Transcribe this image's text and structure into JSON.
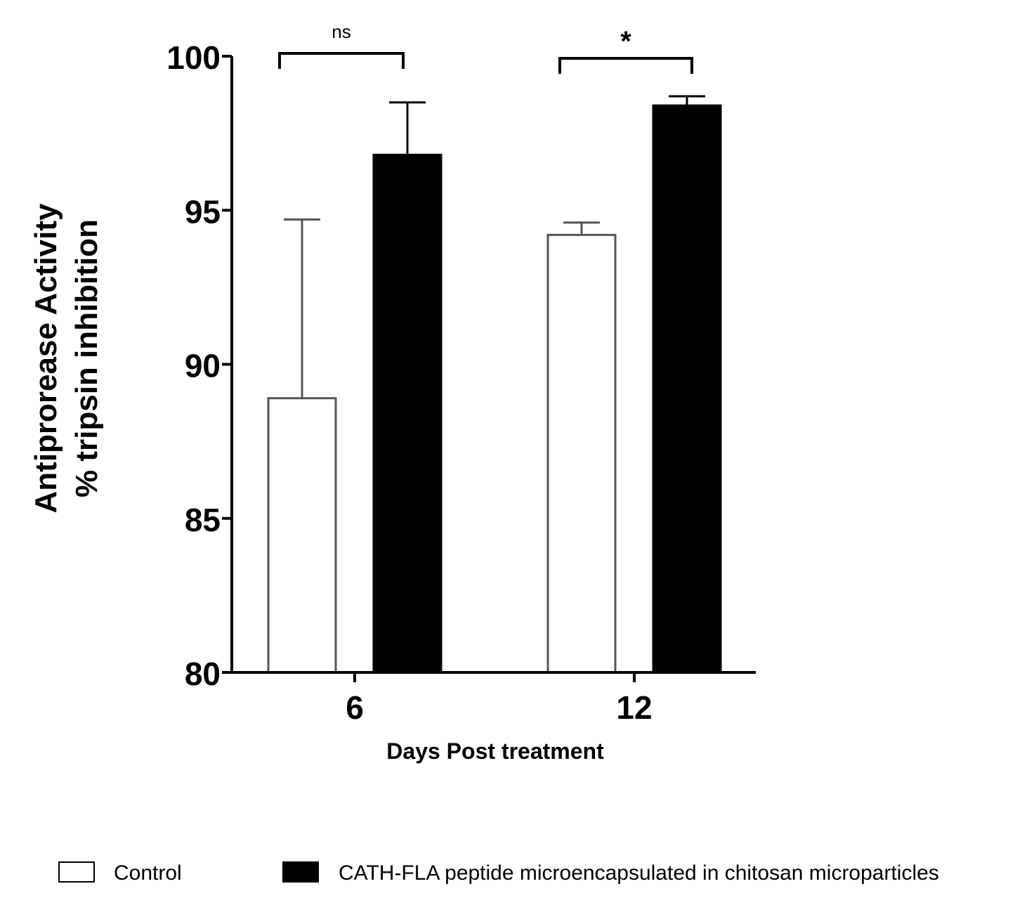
{
  "chart_data": {
    "type": "bar",
    "title": "",
    "xlabel": "Days Post treatment",
    "ylabel_lines": [
      "Antiprorease Activity",
      "% tripsin inhibition"
    ],
    "ylim": [
      80,
      100
    ],
    "yticks": [
      80,
      85,
      90,
      95,
      100
    ],
    "categories": [
      "6",
      "12"
    ],
    "series": [
      {
        "name": "Control",
        "fill": "#ffffff",
        "stroke": "#555555",
        "values": [
          88.9,
          94.2
        ],
        "error_upper": [
          94.7,
          94.6
        ]
      },
      {
        "name": "CATH-FLA peptide microencapsulated in chitosan microparticles",
        "fill": "#000000",
        "stroke": "#000000",
        "values": [
          96.8,
          98.4
        ],
        "error_upper": [
          98.5,
          98.7
        ]
      }
    ],
    "annotations": [
      {
        "category_index": 0,
        "text": "ns"
      },
      {
        "category_index": 1,
        "text": "*"
      }
    ],
    "grid": false,
    "legend_position": "bottom"
  }
}
